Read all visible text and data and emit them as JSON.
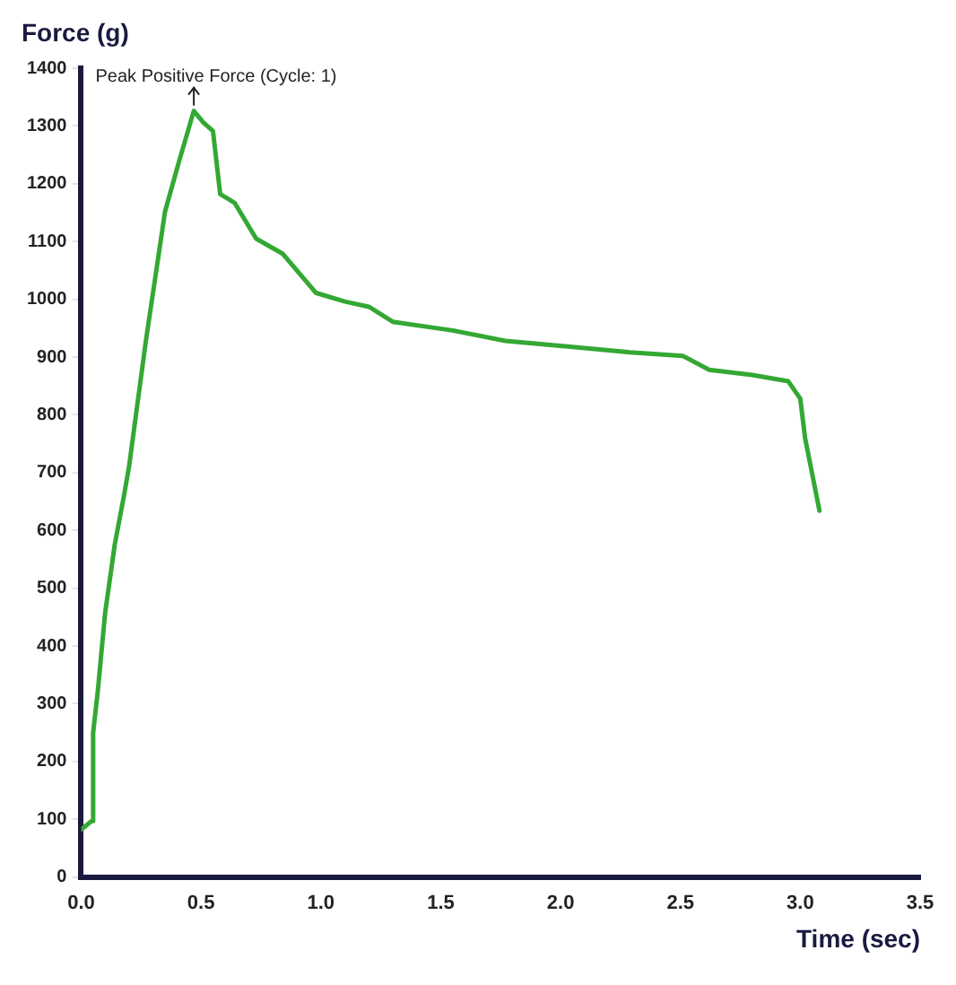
{
  "chart_data": {
    "type": "line",
    "xlabel": "Time (sec)",
    "ylabel": "Force (g)",
    "annotations": [
      {
        "text": "Peak Positive Force (Cycle: 1)",
        "x": 0.47,
        "y": 1326
      }
    ],
    "series": [
      {
        "color": "#33a833",
        "x": [
          0,
          0.044,
          0.05,
          0.07,
          0.1,
          0.14,
          0.18,
          0.2,
          0.27,
          0.35,
          0.41,
          0.47,
          0.51,
          0.55,
          0.58,
          0.64,
          0.73,
          0.84,
          0.98,
          1.1,
          1.2,
          1.3,
          1.55,
          1.77,
          2.06,
          2.29,
          2.51,
          2.62,
          2.8,
          2.95,
          3.0,
          3.02,
          3.08
        ],
        "values": [
          82,
          97,
          250,
          324,
          457,
          575,
          663,
          711,
          928,
          1152,
          1241,
          1326,
          1306,
          1291,
          1182,
          1167,
          1105,
          1079,
          1011,
          996,
          987,
          961,
          946,
          928,
          917,
          908,
          902,
          878,
          869,
          858,
          828,
          760,
          634
        ]
      }
    ],
    "xlim": [
      0,
      3.5
    ],
    "ylim": [
      0,
      1400
    ],
    "xticks": [
      {
        "value": 0,
        "label": "0.0"
      },
      {
        "value": 0.5,
        "label": "0.5"
      },
      {
        "value": 1,
        "label": "1.0"
      },
      {
        "value": 1.5,
        "label": "1.5"
      },
      {
        "value": 2,
        "label": "2.0"
      },
      {
        "value": 2.5,
        "label": "2.5"
      },
      {
        "value": 3,
        "label": "3.0"
      },
      {
        "value": 3.5,
        "label": "3.5"
      }
    ],
    "yticks": [
      0,
      100,
      200,
      300,
      400,
      500,
      600,
      700,
      800,
      900,
      1000,
      1100,
      1200,
      1300,
      1400
    ],
    "grid": false,
    "legend": false,
    "marker": "none",
    "line_style": "solid"
  }
}
